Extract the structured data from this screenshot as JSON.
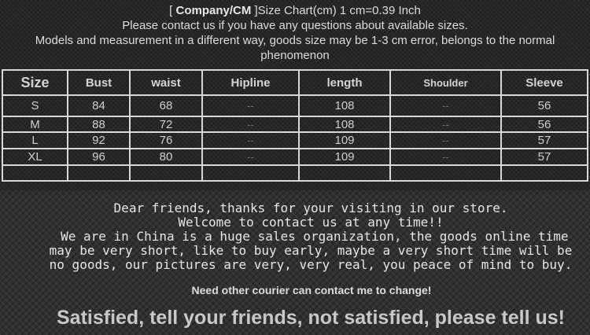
{
  "header": {
    "bracket_open": "[ ",
    "company": "Company/CM",
    "title_rest": " ]Size Chart(cm) 1 cm=0.39 Inch",
    "line2": "Please contact us if you have any questions about available sizes.",
    "line3": "Models and measurement in a different way, goods size may be 1-3 cm error, belongs to the normal phenomenon"
  },
  "table": {
    "columns": [
      "Size",
      "Bust",
      "waist",
      "Hipline",
      "length",
      "Shoulder",
      "Sleeve"
    ],
    "rows": [
      [
        "S",
        "84",
        "68",
        "--",
        "108",
        "--",
        "56"
      ],
      [
        "M",
        "88",
        "72",
        "--",
        "108",
        "--",
        "56"
      ],
      [
        "L",
        "92",
        "76",
        "--",
        "109",
        "--",
        "57"
      ],
      [
        "XL",
        "96",
        "80",
        "--",
        "109",
        "--",
        "57"
      ],
      [
        "",
        "",
        "",
        "",
        "",
        "",
        ""
      ]
    ]
  },
  "message": {
    "lines": [
      "Dear friends, thanks for your visiting in our store.",
      "Welcome to contact us at any time!!",
      " We are in China is a huge sales organization, the goods online time",
      "may be very short, like to buy early, maybe a very short time will be",
      "no goods, our pictures are very, very real, you peace of mind to buy."
    ],
    "courier": "Need other courier can contact me to change!",
    "satisfied": "Satisfied, tell your friends, not satisfied, please tell us!"
  }
}
